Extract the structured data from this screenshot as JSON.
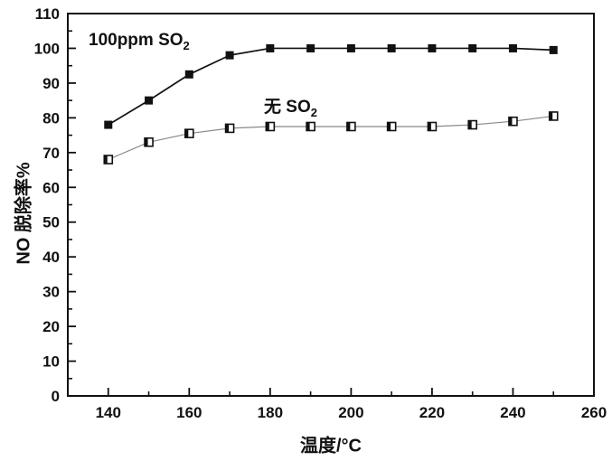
{
  "figure": {
    "background": "#ffffff",
    "ink_color": "#111111"
  },
  "chart_data": {
    "type": "line",
    "title": "",
    "xlabel": "温度/°C",
    "ylabel": "NO 脱除率%",
    "xlim": [
      130,
      260
    ],
    "ylim": [
      0,
      110
    ],
    "grid": false,
    "legend_position": "inline-annotations",
    "x_major_ticks": [
      140,
      160,
      180,
      200,
      220,
      240,
      260
    ],
    "x_minor_ticks": [
      150,
      170,
      190,
      210,
      230,
      250
    ],
    "y_major_ticks": [
      0,
      10,
      20,
      30,
      40,
      50,
      60,
      70,
      80,
      90,
      100,
      110
    ],
    "y_minor_ticks": [
      5,
      15,
      25,
      35,
      45,
      55,
      65,
      75,
      85,
      95,
      105
    ],
    "x": [
      140,
      150,
      160,
      170,
      180,
      190,
      200,
      210,
      220,
      230,
      240,
      250
    ],
    "series": [
      {
        "name": "100ppm SO2",
        "label_main": "100ppm SO",
        "label_sub": "2",
        "marker": "filled-square",
        "line_color": "#111111",
        "values": [
          78,
          85,
          92.5,
          98,
          100,
          100,
          100,
          100,
          100,
          100,
          100,
          99.5
        ]
      },
      {
        "name": "无 SO2",
        "label_main": "无 SO",
        "label_sub": "2",
        "marker": "half-filled-square",
        "line_color": "#888888",
        "values": [
          68,
          73,
          75.5,
          77,
          77.5,
          77.5,
          77.5,
          77.5,
          77.5,
          78,
          79,
          80.5
        ]
      }
    ]
  }
}
